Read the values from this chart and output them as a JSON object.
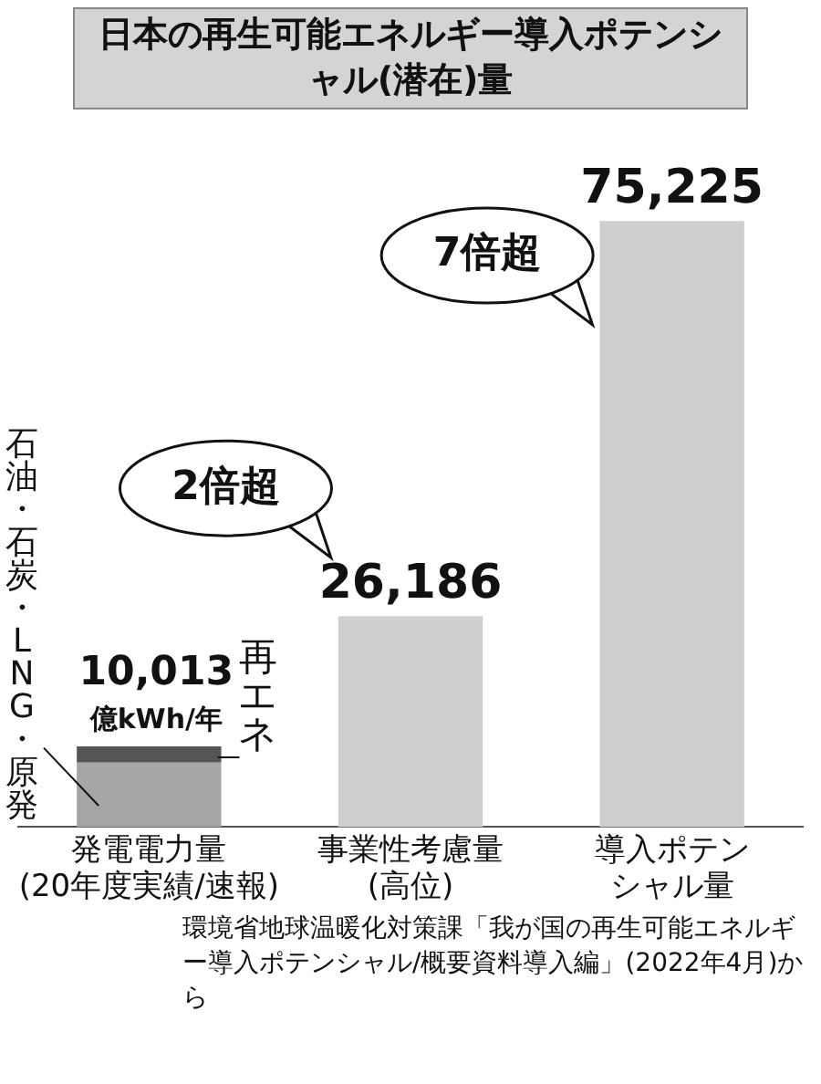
{
  "chart_data": {
    "type": "bar",
    "title": "日本の再生可能エネルギー導入ポテンシャル(潜在)量",
    "categories": [
      "発電電力量(20年度実績/速報)",
      "事業性考慮量(高位)",
      "導入ポテンシャル量"
    ],
    "stacked": true,
    "legend": false,
    "series": [
      {
        "name": "石油・石炭・LNG・原発",
        "color": "#a6a6a6",
        "values": [
          8013,
          null,
          null
        ]
      },
      {
        "name": "再エネ",
        "color": "#555555",
        "values": [
          2000,
          null,
          null
        ]
      },
      {
        "color": "#cfcfcf",
        "values": [
          null,
          26186,
          75225
        ],
        "value_labels": [
          null,
          "26,186",
          "75,225"
        ]
      }
    ],
    "totals": [
      "10,013",
      null,
      null
    ],
    "annotations": [
      "億kWh/年",
      "2倍超",
      "7倍超",
      "環境省地球温暖化対策課「我が国の再生可能エネルギー導入ポテンシャル/概要資料導入編」(2022年4月)から"
    ]
  }
}
